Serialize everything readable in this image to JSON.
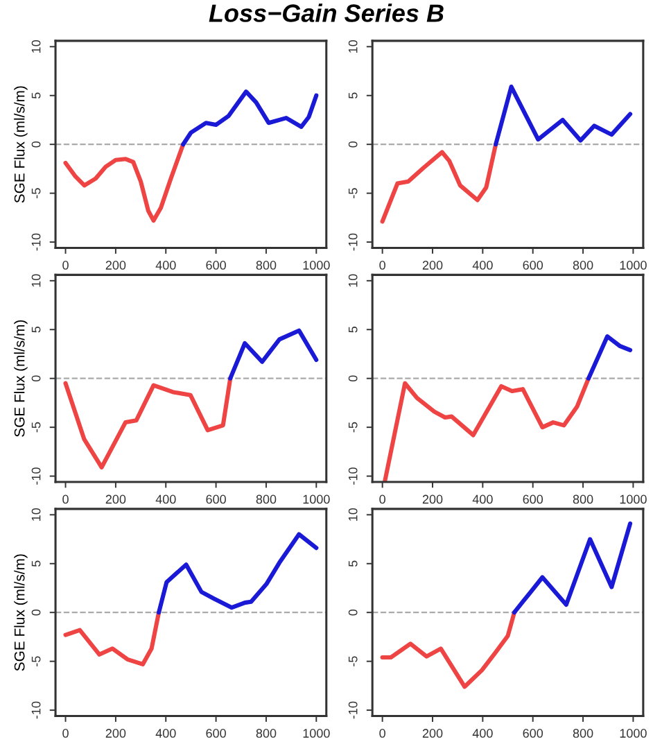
{
  "chart_data": [
    {
      "type": "line",
      "title": "Loss−Gain Series B",
      "ylabel": "SGE Flux (ml/s/m)",
      "xlim": [
        -40,
        1040
      ],
      "ylim": [
        -10.6,
        10.6
      ],
      "xticks": [
        0,
        200,
        400,
        600,
        800,
        1000
      ],
      "yticks": [
        -10,
        -5,
        0,
        5,
        10
      ],
      "ref_lines": [
        {
          "axis": "y",
          "value": 0,
          "color": "#aaaaaa",
          "line_style": "dashed"
        }
      ],
      "series": [
        {
          "color": "#ee4444",
          "x": [
            0,
            40,
            75,
            120,
            160,
            200,
            240,
            270,
            300,
            330,
            351,
            380,
            420,
            469
          ],
          "values": [
            -1.9,
            -3.3,
            -4.2,
            -3.5,
            -2.3,
            -1.6,
            -1.5,
            -1.8,
            -3.8,
            -6.8,
            -7.8,
            -6.5,
            -3.5,
            0
          ]
        },
        {
          "color": "#1a1ad6",
          "x": [
            469,
            500,
            560,
            600,
            650,
            720,
            760,
            810,
            880,
            940,
            970,
            1000
          ],
          "values": [
            0,
            1.2,
            2.2,
            2.0,
            2.9,
            5.4,
            4.3,
            2.2,
            2.7,
            1.8,
            2.8,
            5.0
          ]
        }
      ]
    },
    {
      "type": "line",
      "xlim": [
        -40,
        1040
      ],
      "ylim": [
        -10.6,
        10.6
      ],
      "xticks": [
        0,
        200,
        400,
        600,
        800,
        1000
      ],
      "yticks": [
        -10,
        -5,
        0,
        5,
        10
      ],
      "ref_lines": [
        {
          "axis": "y",
          "value": 0,
          "color": "#aaaaaa",
          "line_style": "dashed"
        }
      ],
      "series": [
        {
          "color": "#ee4444",
          "x": [
            0,
            60,
            103,
            164,
            238,
            267,
            310,
            379,
            414,
            452
          ],
          "values": [
            -7.9,
            -4.0,
            -3.8,
            -2.4,
            -0.8,
            -1.7,
            -4.2,
            -5.7,
            -4.4,
            0
          ]
        },
        {
          "color": "#1a1ad6",
          "x": [
            452,
            514,
            621,
            719,
            790,
            845,
            914,
            988
          ],
          "values": [
            0,
            5.9,
            0.5,
            2.5,
            0.4,
            1.9,
            1.0,
            3.1
          ]
        }
      ]
    },
    {
      "type": "line",
      "ylabel": "SGE Flux (ml/s/m)",
      "xlim": [
        -40,
        1040
      ],
      "ylim": [
        -10.6,
        10.6
      ],
      "xticks": [
        0,
        200,
        400,
        600,
        800,
        1000
      ],
      "yticks": [
        -10,
        -5,
        0,
        5,
        10
      ],
      "ref_lines": [
        {
          "axis": "y",
          "value": 0,
          "color": "#aaaaaa",
          "line_style": "dashed"
        }
      ],
      "series": [
        {
          "color": "#ee4444",
          "x": [
            0,
            74,
            144,
            239,
            282,
            351,
            429,
            498,
            567,
            628,
            657
          ],
          "values": [
            -0.5,
            -6.2,
            -9.1,
            -4.5,
            -4.3,
            -0.7,
            -1.4,
            -1.7,
            -5.3,
            -4.8,
            0
          ]
        },
        {
          "color": "#1a1ad6",
          "x": [
            657,
            715,
            784,
            853,
            931,
            1000
          ],
          "values": [
            0,
            3.6,
            1.7,
            4.0,
            4.9,
            1.9
          ]
        }
      ]
    },
    {
      "type": "line",
      "xlim": [
        -40,
        1040
      ],
      "ylim": [
        -10.6,
        10.6
      ],
      "xticks": [
        0,
        200,
        400,
        600,
        800,
        1000
      ],
      "yticks": [
        -10,
        -5,
        0,
        5,
        10
      ],
      "ref_lines": [
        {
          "axis": "y",
          "value": 0,
          "color": "#aaaaaa",
          "line_style": "dashed"
        }
      ],
      "series": [
        {
          "color": "#ee4444",
          "x": [
            10,
            90,
            138,
            207,
            250,
            276,
            362,
            474,
            517,
            560,
            638,
            681,
            724,
            776,
            822
          ],
          "values": [
            -10.5,
            -0.5,
            -2.0,
            -3.4,
            -4.0,
            -3.9,
            -5.8,
            -0.8,
            -1.3,
            -1.1,
            -5.0,
            -4.5,
            -4.8,
            -2.9,
            0
          ]
        },
        {
          "color": "#1a1ad6",
          "x": [
            822,
            897,
            948,
            988
          ],
          "values": [
            0,
            4.3,
            3.3,
            2.9
          ]
        }
      ]
    },
    {
      "type": "line",
      "ylabel": "SGE Flux (ml/s/m)",
      "xlim": [
        -40,
        1040
      ],
      "ylim": [
        -10.6,
        10.6
      ],
      "xticks": [
        0,
        200,
        400,
        600,
        800,
        1000
      ],
      "yticks": [
        -10,
        -5,
        0,
        5,
        10
      ],
      "ref_lines": [
        {
          "axis": "y",
          "value": 0,
          "color": "#aaaaaa",
          "line_style": "dashed"
        }
      ],
      "series": [
        {
          "color": "#ee4444",
          "x": [
            0,
            57,
            135,
            187,
            247,
            308,
            343,
            372
          ],
          "values": [
            -2.3,
            -1.8,
            -4.3,
            -3.7,
            -4.8,
            -5.3,
            -3.7,
            0
          ]
        },
        {
          "color": "#1a1ad6",
          "x": [
            372,
            403,
            481,
            542,
            593,
            663,
            715,
            740,
            801,
            853,
            931,
            1000
          ],
          "values": [
            0,
            3.1,
            4.9,
            2.1,
            1.4,
            0.5,
            1.0,
            1.1,
            2.9,
            5.1,
            8.0,
            6.6
          ]
        }
      ]
    },
    {
      "type": "line",
      "xlim": [
        -40,
        1040
      ],
      "ylim": [
        -10.6,
        10.6
      ],
      "xticks": [
        0,
        200,
        400,
        600,
        800,
        1000
      ],
      "yticks": [
        -10,
        -5,
        0,
        5,
        10
      ],
      "ref_lines": [
        {
          "axis": "y",
          "value": 0,
          "color": "#aaaaaa",
          "line_style": "dashed"
        }
      ],
      "series": [
        {
          "color": "#ee4444",
          "x": [
            0,
            34,
            112,
            176,
            233,
            328,
            397,
            448,
            500,
            526
          ],
          "values": [
            -4.6,
            -4.6,
            -3.2,
            -4.5,
            -3.7,
            -7.6,
            -5.9,
            -4.2,
            -2.4,
            0
          ]
        },
        {
          "color": "#1a1ad6",
          "x": [
            526,
            560,
            638,
            733,
            828,
            914,
            988
          ],
          "values": [
            0,
            1.1,
            3.6,
            0.8,
            7.5,
            2.6,
            9.1
          ]
        }
      ]
    }
  ]
}
